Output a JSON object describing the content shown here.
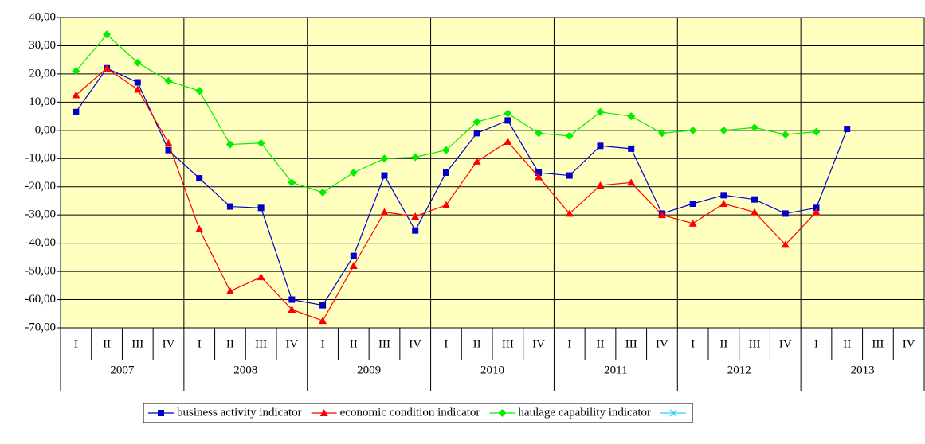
{
  "chart_data": {
    "type": "line",
    "categories": [
      "I",
      "II",
      "III",
      "IV",
      "I",
      "II",
      "III",
      "IV",
      "I",
      "II",
      "III",
      "IV",
      "I",
      "II",
      "III",
      "IV",
      "I",
      "II",
      "III",
      "IV",
      "I",
      "II",
      "III",
      "IV",
      "I",
      "II",
      "III",
      "IV"
    ],
    "groups": [
      "2007",
      "2008",
      "2009",
      "2010",
      "2011",
      "2012",
      "2013"
    ],
    "series": [
      {
        "name": "business activity indicator",
        "color": "#0000cc",
        "marker": "square",
        "values": [
          6.5,
          22,
          17,
          -7,
          -17,
          -27,
          -27.5,
          -60,
          -62,
          -44.5,
          -16,
          -35.5,
          -15,
          -1,
          3.5,
          -15,
          -16,
          -5.5,
          -6.5,
          -29.5,
          -26,
          -23,
          -24.5,
          -29.5,
          -27.5,
          0.5,
          null,
          null
        ]
      },
      {
        "name": "economic condition indicator",
        "color": "#ff0000",
        "marker": "triangle",
        "values": [
          12.5,
          22,
          14.5,
          -4.5,
          -35,
          -57,
          -52,
          -63.5,
          -67.5,
          -48,
          -29,
          -30.5,
          -26.5,
          -11,
          -4,
          -16.5,
          -29.5,
          -19.5,
          -18.5,
          -30,
          -33,
          -26,
          -29,
          -40.5,
          -29,
          null,
          null,
          null
        ]
      },
      {
        "name": "haulage capability indicator",
        "color": "#00ee00",
        "marker": "diamond",
        "values": [
          21,
          34,
          24,
          17.5,
          14,
          -5,
          -4.5,
          -18.5,
          -22,
          -15,
          -10,
          -9.5,
          -7,
          3,
          6,
          -1,
          -2,
          6.5,
          5,
          -1,
          0,
          0,
          1,
          -1.5,
          -0.5,
          null,
          null,
          null
        ]
      },
      {
        "color": "#33ccff",
        "marker": "cross",
        "values": [
          null,
          null,
          null,
          null,
          null,
          null,
          null,
          null,
          null,
          null,
          null,
          null,
          null,
          null,
          null,
          null,
          null,
          null,
          null,
          null,
          null,
          null,
          null,
          null,
          null,
          null,
          null,
          null
        ]
      }
    ],
    "ylim": [
      -70,
      40
    ],
    "yticks": [
      {
        "value": -70,
        "label": "-70,00"
      },
      {
        "value": -60,
        "label": "-60,00"
      },
      {
        "value": -50,
        "label": "-50,00"
      },
      {
        "value": -40,
        "label": "-40,00"
      },
      {
        "value": -30,
        "label": "-30,00"
      },
      {
        "value": -20,
        "label": "-20,00"
      },
      {
        "value": -10,
        "label": "-10,00"
      },
      {
        "value": 0,
        "label": "0,00"
      },
      {
        "value": 10,
        "label": "10,00"
      },
      {
        "value": 20,
        "label": "20,00"
      },
      {
        "value": 30,
        "label": "30,00"
      },
      {
        "value": 40,
        "label": "40,00"
      }
    ],
    "grid": true,
    "background": "#ffffc0",
    "legend": "bottom"
  }
}
